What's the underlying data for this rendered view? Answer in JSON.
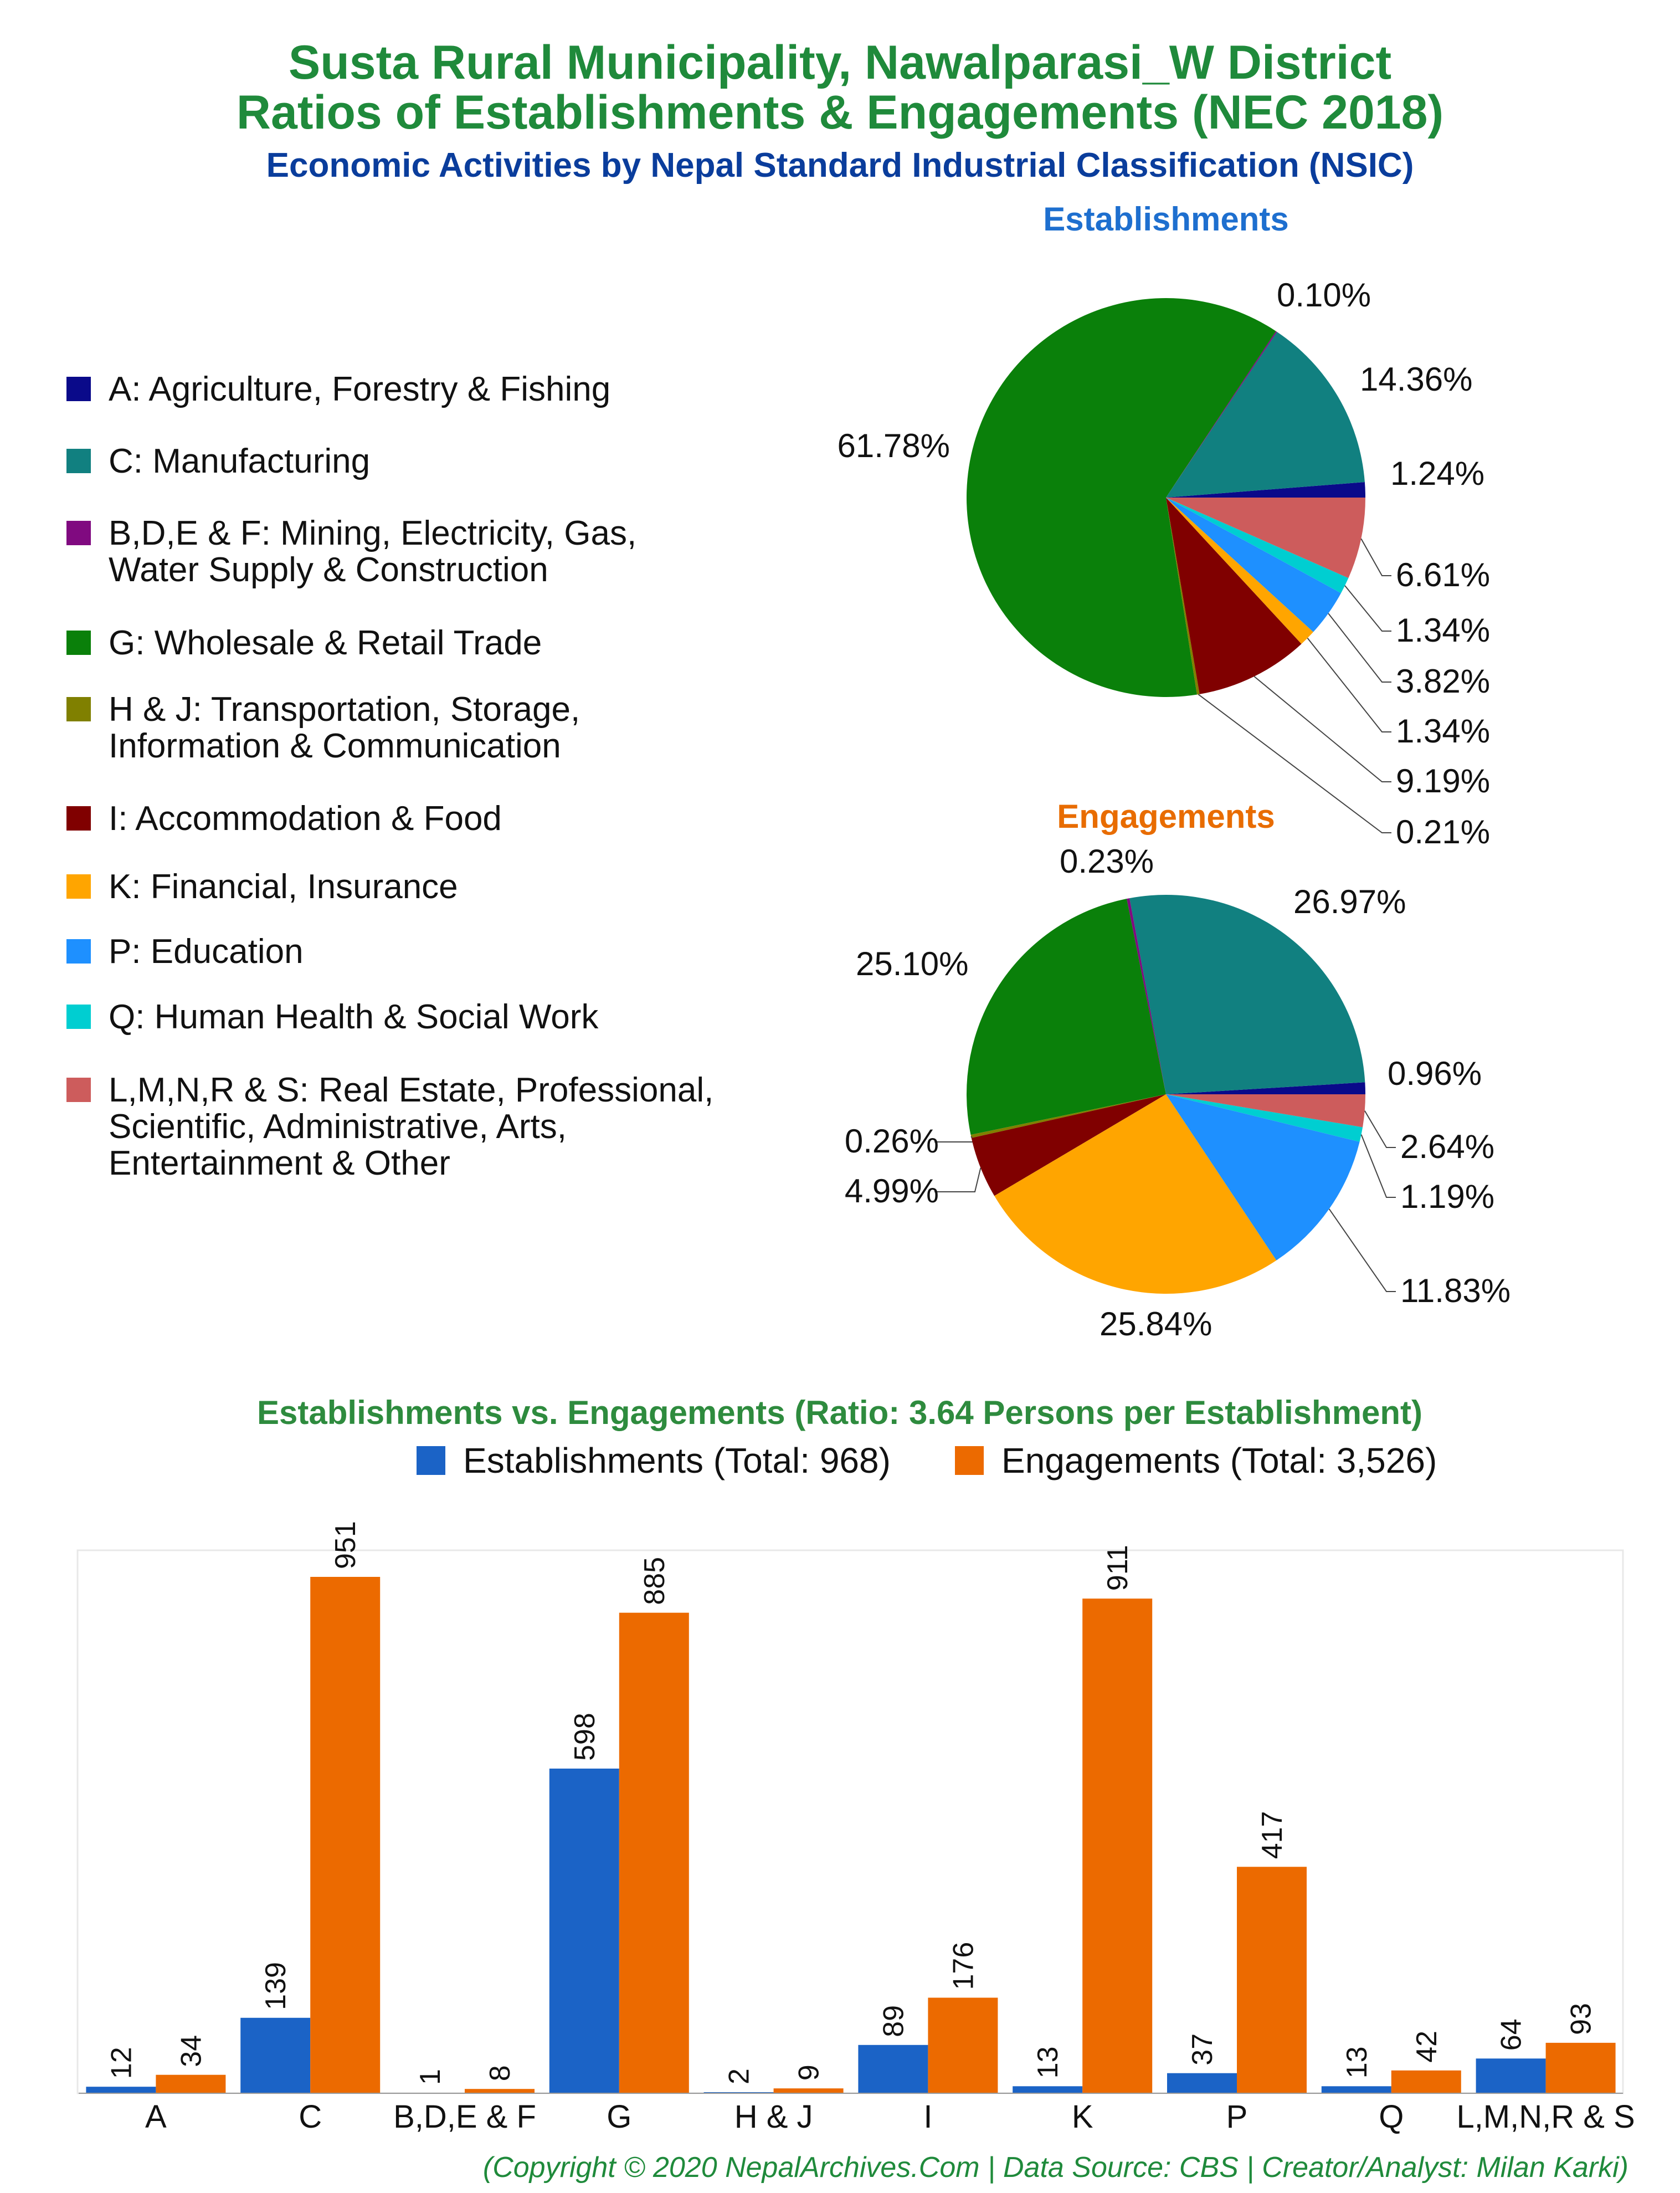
{
  "title_line1": "Susta Rural Municipality, Nawalparasi_W District",
  "title_line2": "Ratios of Establishments & Engagements (NEC 2018)",
  "subtitle": "Economic Activities by Nepal Standard Industrial Classification (NSIC)",
  "footer": "(Copyright © 2020 NepalArchives.Com | Data Source: CBS | Creator/Analyst: Milan Karki)",
  "legend": [
    {
      "label": "A: Agriculture, Forestry & Fishing",
      "color": "#0a0a8a"
    },
    {
      "label": "C: Manufacturing",
      "color": "#118080"
    },
    {
      "label": "B,D,E & F: Mining, Electricity, Gas,\nWater Supply & Construction",
      "color": "#800a80"
    },
    {
      "label": "G: Wholesale & Retail Trade",
      "color": "#0a800a"
    },
    {
      "label": "H & J: Transportation, Storage,\nInformation & Communication",
      "color": "#808000"
    },
    {
      "label": "I: Accommodation & Food",
      "color": "#800000"
    },
    {
      "label": "K: Financial, Insurance",
      "color": "#ffa500"
    },
    {
      "label": "P: Education",
      "color": "#1e90ff"
    },
    {
      "label": "Q: Human Health & Social Work",
      "color": "#00ced1"
    },
    {
      "label": "L,M,N,R & S: Real Estate, Professional,\nScientific, Administrative, Arts,\nEntertainment & Other",
      "color": "#cd5c5c"
    }
  ],
  "chart_data": [
    {
      "type": "pie",
      "title": "Establishments",
      "title_color": "#1e6fcf",
      "slices": [
        {
          "category": "A",
          "value": 1.24,
          "label": "1.24%"
        },
        {
          "category": "C",
          "value": 14.36,
          "label": "14.36%"
        },
        {
          "category": "B,D,E & F",
          "value": 0.1,
          "label": "0.10%"
        },
        {
          "category": "G",
          "value": 61.78,
          "label": "61.78%"
        },
        {
          "category": "H & J",
          "value": 0.21,
          "label": "0.21%"
        },
        {
          "category": "I",
          "value": 9.19,
          "label": "9.19%"
        },
        {
          "category": "K",
          "value": 1.34,
          "label": "1.34%"
        },
        {
          "category": "P",
          "value": 3.82,
          "label": "3.82%"
        },
        {
          "category": "Q",
          "value": 1.34,
          "label": "1.34%"
        },
        {
          "category": "L,M,N,R & S",
          "value": 6.61,
          "label": "6.61%"
        }
      ]
    },
    {
      "type": "pie",
      "title": "Engagements",
      "title_color": "#e86c00",
      "slices": [
        {
          "category": "A",
          "value": 0.96,
          "label": "0.96%"
        },
        {
          "category": "C",
          "value": 26.97,
          "label": "26.97%"
        },
        {
          "category": "B,D,E & F",
          "value": 0.23,
          "label": "0.23%"
        },
        {
          "category": "G",
          "value": 25.1,
          "label": "25.10%"
        },
        {
          "category": "H & J",
          "value": 0.26,
          "label": "0.26%"
        },
        {
          "category": "I",
          "value": 4.99,
          "label": "4.99%"
        },
        {
          "category": "K",
          "value": 25.84,
          "label": "25.84%"
        },
        {
          "category": "P",
          "value": 11.83,
          "label": "11.83%"
        },
        {
          "category": "Q",
          "value": 1.19,
          "label": "1.19%"
        },
        {
          "category": "L,M,N,R & S",
          "value": 2.64,
          "label": "2.64%"
        }
      ]
    },
    {
      "type": "bar",
      "title": "Establishments vs. Engagements (Ratio: 3.64 Persons per Establishment)",
      "categories": [
        "A",
        "C",
        "B,D,E & F",
        "G",
        "H & J",
        "I",
        "K",
        "P",
        "Q",
        "L,M,N,R & S"
      ],
      "series": [
        {
          "name": "Establishments (Total: 968)",
          "color": "#1b63c6",
          "values": [
            12,
            139,
            1,
            598,
            2,
            89,
            13,
            37,
            13,
            64
          ]
        },
        {
          "name": "Engagements (Total: 3,526)",
          "color": "#ec6a00",
          "values": [
            34,
            951,
            8,
            885,
            9,
            176,
            911,
            417,
            42,
            93
          ]
        }
      ],
      "ylim": [
        0,
        1000
      ],
      "grid": false,
      "legend_position": "top"
    }
  ]
}
